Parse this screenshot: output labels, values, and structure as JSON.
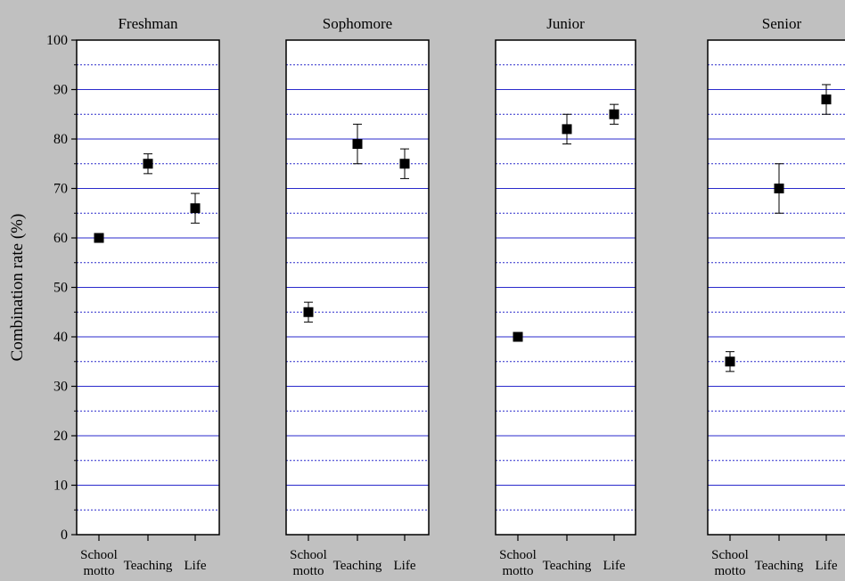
{
  "chart_data": {
    "type": "scatter",
    "ylabel": "Combination rate (%)",
    "ylim": [
      0,
      100
    ],
    "y_ticks": [
      0,
      10,
      20,
      30,
      40,
      50,
      60,
      70,
      80,
      90,
      100
    ],
    "grid": "major solid blue lines every 10, minor dotted lines every 5",
    "categories": [
      [
        "School",
        "motto"
      ],
      [
        "Teaching"
      ],
      [
        "Life"
      ]
    ],
    "panels": [
      {
        "title": "Freshman",
        "values": [
          60,
          75,
          66
        ],
        "errors": [
          0.7,
          2,
          3
        ]
      },
      {
        "title": "Sophomore",
        "values": [
          45,
          79,
          75
        ],
        "errors": [
          2,
          4,
          3
        ]
      },
      {
        "title": "Junior",
        "values": [
          40,
          82,
          85
        ],
        "errors": [
          0.5,
          3,
          2
        ]
      },
      {
        "title": "Senior",
        "values": [
          35,
          70,
          88
        ],
        "errors": [
          2,
          5,
          3
        ]
      }
    ]
  },
  "colors": {
    "background": "#c0c0c0",
    "plot_background": "#ffffff",
    "grid_line": "#2a2acc",
    "marker": "#000000"
  }
}
